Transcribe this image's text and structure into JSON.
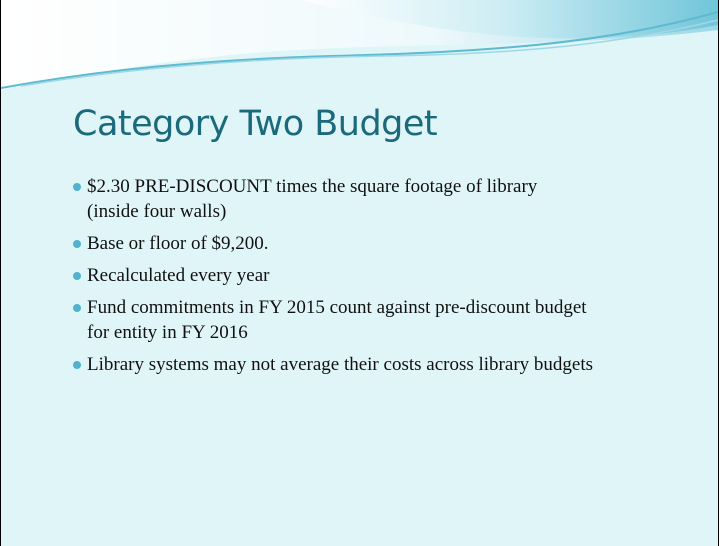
{
  "slide": {
    "title": "Category Two Budget",
    "bullets": [
      "$2.30 PRE-DISCOUNT times the square footage of library (inside four walls)",
      "Base or floor of $9,200.",
      "Recalculated every year",
      "Fund commitments in FY 2015 count against pre-discount budget for entity in FY 2016",
      "Library systems may not average their costs across library budgets"
    ]
  }
}
